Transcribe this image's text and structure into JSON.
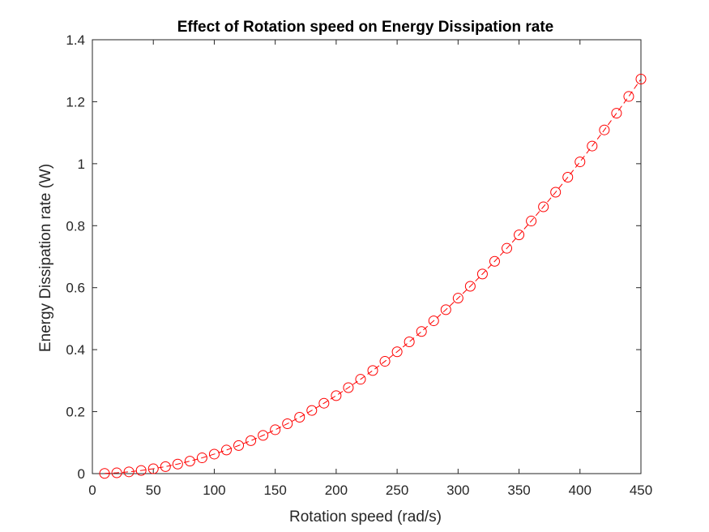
{
  "chart_data": {
    "type": "line",
    "title": "Effect of Rotation speed on Energy Dissipation rate",
    "xlabel": "Rotation speed (rad/s)",
    "ylabel": "Energy Dissipation rate (W)",
    "xlim": [
      0,
      450
    ],
    "ylim": [
      0,
      1.4
    ],
    "xticks": [
      0,
      50,
      100,
      150,
      200,
      250,
      300,
      350,
      400,
      450
    ],
    "xtick_labels": [
      "0",
      "50",
      "100",
      "150",
      "200",
      "250",
      "300",
      "350",
      "400",
      "450"
    ],
    "yticks": [
      0,
      0.2,
      0.4,
      0.6,
      0.8,
      1.0,
      1.2,
      1.4
    ],
    "ytick_labels": [
      "0",
      "0.2",
      "0.4",
      "0.6",
      "0.8",
      "1",
      "1.2",
      "1.4"
    ],
    "grid": false,
    "legend": false,
    "series": [
      {
        "color": "#ff0000",
        "line_style": "dashed",
        "marker": "circle",
        "x": [
          10,
          20,
          30,
          40,
          50,
          60,
          70,
          80,
          90,
          100,
          110,
          120,
          130,
          140,
          150,
          160,
          170,
          180,
          190,
          200,
          210,
          220,
          230,
          240,
          250,
          260,
          270,
          280,
          290,
          300,
          310,
          320,
          330,
          340,
          350,
          360,
          370,
          380,
          390,
          400,
          410,
          420,
          430,
          440,
          450
        ],
        "y": [
          0.0006,
          0.0025,
          0.0057,
          0.0101,
          0.0157,
          0.0226,
          0.0308,
          0.0402,
          0.0509,
          0.0629,
          0.0761,
          0.0906,
          0.1063,
          0.1233,
          0.1415,
          0.161,
          0.1818,
          0.2038,
          0.2271,
          0.2516,
          0.2774,
          0.3044,
          0.3327,
          0.3623,
          0.3931,
          0.4252,
          0.4585,
          0.4931,
          0.529,
          0.5661,
          0.6044,
          0.644,
          0.6849,
          0.727,
          0.7704,
          0.815,
          0.8609,
          0.908,
          0.9564,
          1.006,
          1.057,
          1.109,
          1.163,
          1.217,
          1.273
        ]
      }
    ]
  }
}
